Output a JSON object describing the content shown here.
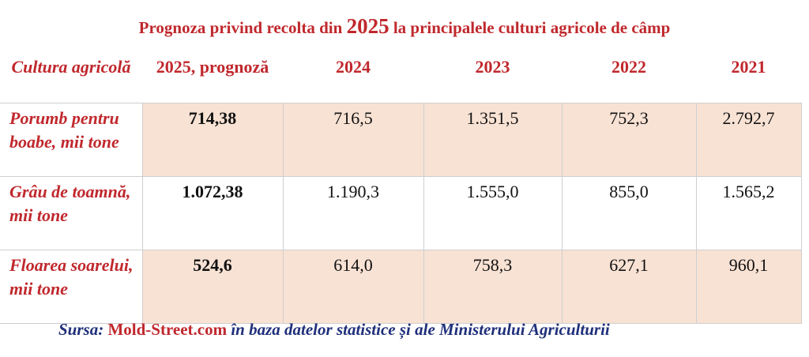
{
  "title": {
    "before": "Prognoza privind recolta din",
    "year": "2025",
    "after": "la principalele culturi agricole de câmp"
  },
  "table": {
    "header": [
      "Cultura agricolă",
      "2025, prognoză",
      "2024",
      "2023",
      "2022",
      "2021"
    ],
    "rows": [
      [
        "Porumb pentru boabe, mii tone",
        "714,38",
        "716,5",
        "1.351,5",
        "752,3",
        "2.792,7"
      ],
      [
        "Grâu de toamnă, mii tone",
        "1.072,38",
        "1.190,3",
        "1.555,0",
        "855,0",
        "1.565,2"
      ],
      [
        "Floarea soarelui, mii tone",
        "524,6",
        "614,0",
        "758,3",
        "627,1",
        "960,1"
      ]
    ]
  },
  "source": {
    "label": "Sursa:",
    "site": "Mold-Street.com",
    "text": "în baza datelor statistice și ale Ministerului Agriculturii"
  }
}
